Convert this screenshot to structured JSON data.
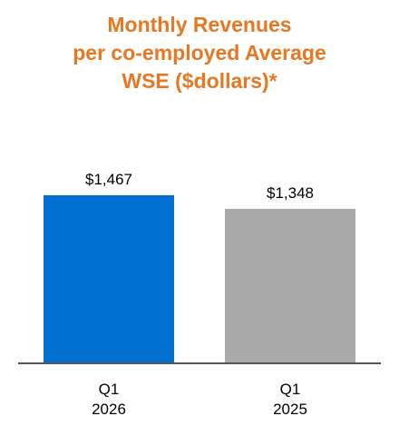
{
  "chart_data": {
    "type": "bar",
    "title": "Monthly Revenues\nper co-employed Average\nWSE ($dollars)*",
    "categories": [
      "Q1\n2026",
      "Q1\n2025"
    ],
    "values": [
      1467,
      1348
    ],
    "value_labels": [
      "$1,467",
      "$1,348"
    ],
    "colors": [
      "#0070d0",
      "#a9a9a9"
    ],
    "title_color": "#e87722"
  }
}
